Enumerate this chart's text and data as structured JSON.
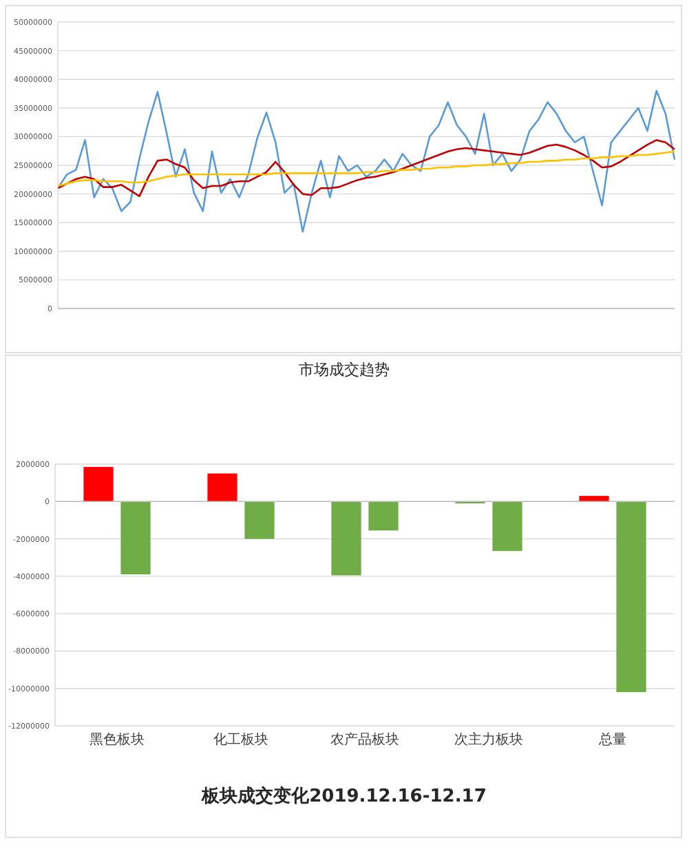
{
  "chart_data": [
    {
      "type": "line",
      "title": "市场成交趋势",
      "categories": [
        null,
        null,
        null,
        null,
        null,
        null,
        null,
        null,
        null,
        null,
        null,
        null,
        null,
        null,
        null,
        null,
        null,
        null,
        null,
        null,
        null,
        null,
        null,
        null,
        null,
        null,
        null,
        null,
        null,
        null,
        null,
        null,
        null,
        null,
        null,
        null,
        null,
        null,
        null,
        null,
        null,
        null,
        null,
        null,
        null,
        null,
        null,
        null,
        null,
        null,
        null,
        null,
        null,
        null,
        null,
        null,
        null,
        null,
        null,
        null,
        null,
        null,
        null,
        null,
        null,
        null,
        null,
        null,
        null
      ],
      "series": [
        {
          "color": "#5b9bd5",
          "values": [
            21000000,
            23400000,
            24200000,
            29400000,
            19400000,
            22600000,
            21000000,
            17000000,
            18600000,
            26200000,
            32600000,
            37800000,
            30600000,
            23000000,
            27800000,
            20200000,
            17000000,
            27400000,
            20200000,
            22600000,
            19400000,
            23400000,
            29800000,
            34200000,
            29000000,
            20200000,
            21800000,
            13400000,
            20200000,
            25800000,
            19400000,
            26600000,
            24000000,
            25000000,
            23000000,
            24000000,
            26000000,
            24000000,
            27000000,
            25000000,
            24000000,
            30000000,
            32000000,
            36000000,
            32000000,
            30000000,
            27000000,
            34000000,
            25000000,
            27000000,
            24000000,
            26000000,
            31000000,
            33000000,
            36000000,
            34000000,
            31000000,
            29000000,
            30000000,
            24000000,
            18000000,
            29000000,
            31000000,
            33000000,
            35000000,
            31000000,
            38000000,
            34000000,
            26000000
          ]
        },
        {
          "color": "#c00000",
          "values": [
            21000000,
            21800000,
            22600000,
            23000000,
            22600000,
            21200000,
            21200000,
            21600000,
            20600000,
            19600000,
            23000000,
            25800000,
            26000000,
            25200000,
            24600000,
            22400000,
            21000000,
            21400000,
            21400000,
            22000000,
            22200000,
            22200000,
            23000000,
            23800000,
            25600000,
            23800000,
            21600000,
            20000000,
            19800000,
            21000000,
            21000000,
            21200000,
            21800000,
            22400000,
            22800000,
            23000000,
            23400000,
            23800000,
            24400000,
            25000000,
            25600000,
            26200000,
            26800000,
            27400000,
            27800000,
            28000000,
            27800000,
            27600000,
            27400000,
            27200000,
            27000000,
            26800000,
            27200000,
            27800000,
            28400000,
            28600000,
            28200000,
            27600000,
            26800000,
            25800000,
            24600000,
            24800000,
            25600000,
            26600000,
            27600000,
            28600000,
            29400000,
            29000000,
            27800000
          ]
        },
        {
          "color": "#ffc000",
          "values": [
            21400000,
            21800000,
            22200000,
            22400000,
            22400000,
            22200000,
            22200000,
            22200000,
            22000000,
            22000000,
            22200000,
            22600000,
            23000000,
            23200000,
            23400000,
            23400000,
            23400000,
            23400000,
            23400000,
            23400000,
            23400000,
            23400000,
            23400000,
            23400000,
            23600000,
            23600000,
            23600000,
            23600000,
            23600000,
            23600000,
            23600000,
            23600000,
            23600000,
            23600000,
            23800000,
            23800000,
            24000000,
            24000000,
            24200000,
            24200000,
            24400000,
            24400000,
            24600000,
            24600000,
            24800000,
            24800000,
            25000000,
            25000000,
            25200000,
            25200000,
            25400000,
            25400000,
            25600000,
            25600000,
            25800000,
            25800000,
            26000000,
            26000000,
            26200000,
            26200000,
            26400000,
            26400000,
            26600000,
            26600000,
            26800000,
            26800000,
            27000000,
            27200000,
            27400000
          ]
        }
      ],
      "ylim": [
        0,
        50000000
      ],
      "yticks": [
        0,
        5000000,
        10000000,
        15000000,
        20000000,
        25000000,
        30000000,
        35000000,
        40000000,
        45000000,
        50000000
      ],
      "grid": "y",
      "tick_labels": "y",
      "marker": "none"
    },
    {
      "type": "bar",
      "title": "板块成交变化2019.12.16-12.17",
      "categories": [
        "黑色板块",
        "化工板块",
        "农产品板块",
        "次主力板块",
        "总量"
      ],
      "series": [
        {
          "colors": [
            "#ff0000",
            "#ff0000",
            "#70ad47",
            "#70ad47",
            "#ff0000"
          ],
          "values": [
            1850000,
            1500000,
            -3950000,
            -100000,
            300000
          ]
        },
        {
          "colors": [
            "#70ad47",
            "#70ad47",
            "#70ad47",
            "#70ad47",
            "#70ad47"
          ],
          "values": [
            -3900000,
            -2000000,
            -1550000,
            -2650000,
            -10200000
          ]
        }
      ],
      "ylim": [
        -12000000,
        2000000
      ],
      "yticks": [
        -12000000,
        -10000000,
        -8000000,
        -6000000,
        -4000000,
        -2000000,
        0,
        2000000
      ],
      "grid": "y"
    }
  ]
}
